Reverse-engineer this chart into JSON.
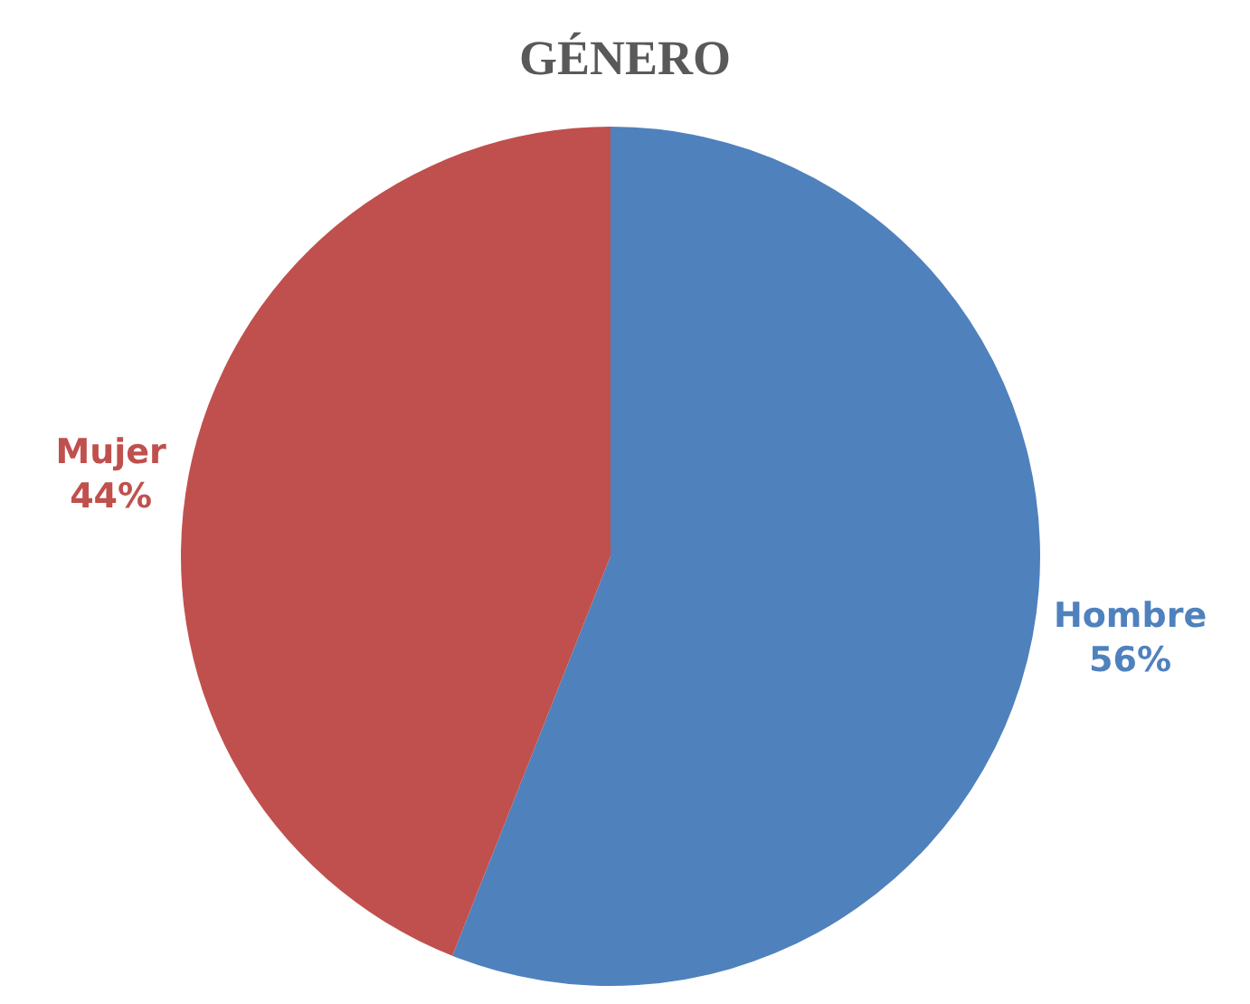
{
  "chart_data": {
    "type": "pie",
    "title": "GÉNERO",
    "categories": [
      "Hombre",
      "Mujer"
    ],
    "values": [
      56,
      44
    ],
    "colors": [
      "#4f81bd",
      "#c0504d"
    ],
    "value_labels": [
      "56%",
      "44%"
    ],
    "legend": false
  }
}
